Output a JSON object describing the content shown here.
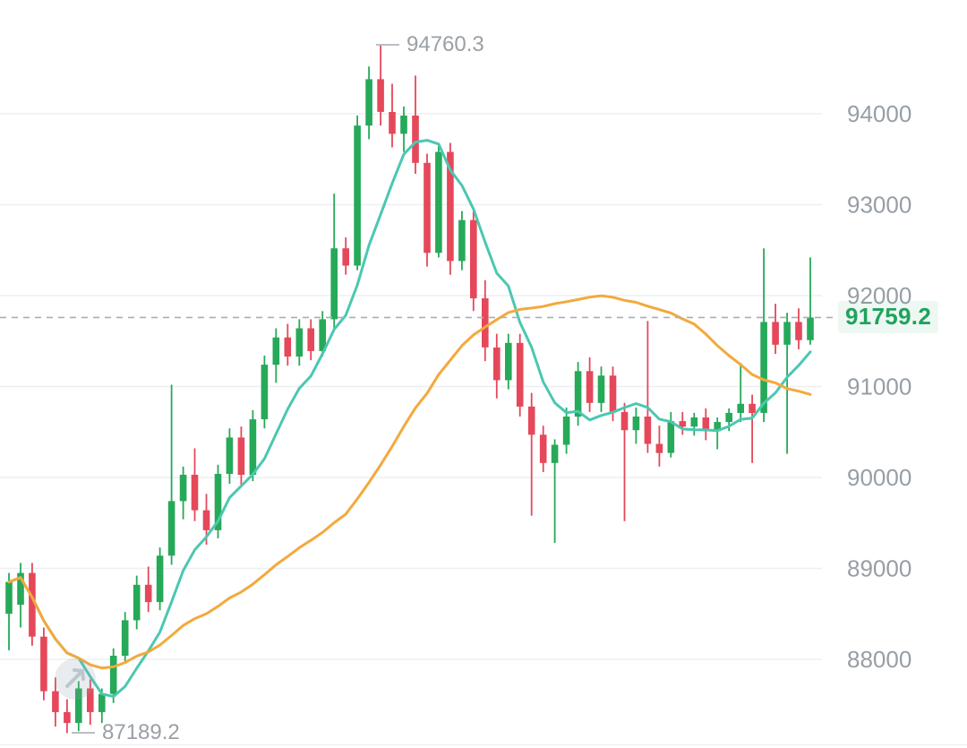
{
  "chart_data": {
    "type": "candlestick",
    "grid": true,
    "legend": "none",
    "ylim": [
      87025,
      95251
    ],
    "y_ticks": [
      {
        "value": 94000,
        "label": "94000"
      },
      {
        "value": 93000,
        "label": "93000"
      },
      {
        "value": 92000,
        "label": "92000"
      },
      {
        "value": 91000,
        "label": "91000"
      },
      {
        "value": 90000,
        "label": "90000"
      },
      {
        "value": 89000,
        "label": "89000"
      },
      {
        "value": 88000,
        "label": "88000"
      }
    ],
    "candles": [
      [
        88500,
        88950,
        88100,
        88850
      ],
      [
        88600,
        89060,
        88350,
        88950
      ],
      [
        88950,
        89060,
        88150,
        88250
      ],
      [
        88250,
        88350,
        87550,
        87650
      ],
      [
        87650,
        87800,
        87260,
        87420
      ],
      [
        87420,
        87560,
        87189.2,
        87300
      ],
      [
        87300,
        87760,
        87210,
        87680
      ],
      [
        87680,
        87780,
        87280,
        87420
      ],
      [
        87420,
        87680,
        87300,
        87620
      ],
      [
        87620,
        88120,
        87520,
        88040
      ],
      [
        88040,
        88520,
        87950,
        88430
      ],
      [
        88430,
        88920,
        88330,
        88820
      ],
      [
        88820,
        89020,
        88520,
        88630
      ],
      [
        88630,
        89230,
        88540,
        89140
      ],
      [
        89140,
        91020,
        89040,
        89740
      ],
      [
        89740,
        90120,
        89540,
        90030
      ],
      [
        90030,
        90320,
        89520,
        89640
      ],
      [
        89640,
        89820,
        89260,
        89420
      ],
      [
        89420,
        90140,
        89330,
        90040
      ],
      [
        90040,
        90540,
        89930,
        90440
      ],
      [
        90440,
        90560,
        89920,
        90030
      ],
      [
        90030,
        90740,
        89960,
        90640
      ],
      [
        90640,
        91340,
        90540,
        91240
      ],
      [
        91240,
        91640,
        91040,
        91540
      ],
      [
        91540,
        91690,
        91230,
        91330
      ],
      [
        91330,
        91740,
        91230,
        91640
      ],
      [
        91640,
        91740,
        91290,
        91390
      ],
      [
        91390,
        91830,
        91330,
        91740
      ],
      [
        91740,
        93120,
        91640,
        92520
      ],
      [
        92520,
        92640,
        92230,
        92330
      ],
      [
        92330,
        93980,
        92280,
        93870
      ],
      [
        93870,
        94520,
        93720,
        94380
      ],
      [
        94380,
        94760.3,
        93870,
        94020
      ],
      [
        94020,
        94330,
        93630,
        93780
      ],
      [
        93780,
        94080,
        93580,
        93980
      ],
      [
        93980,
        94420,
        93340,
        93460
      ],
      [
        93460,
        93560,
        92320,
        92470
      ],
      [
        92470,
        93680,
        92420,
        93580
      ],
      [
        93580,
        93680,
        92230,
        92380
      ],
      [
        92380,
        92930,
        92280,
        92830
      ],
      [
        92830,
        92930,
        91830,
        91970
      ],
      [
        91970,
        92170,
        91280,
        91430
      ],
      [
        91430,
        91580,
        90870,
        91070
      ],
      [
        91070,
        91580,
        90970,
        91480
      ],
      [
        91480,
        91580,
        90670,
        90780
      ],
      [
        90780,
        90930,
        89580,
        90470
      ],
      [
        90470,
        90570,
        90060,
        90160
      ],
      [
        90160,
        90420,
        89280,
        90360
      ],
      [
        90360,
        90770,
        90260,
        90670
      ],
      [
        90670,
        91270,
        90570,
        91170
      ],
      [
        91170,
        91320,
        90720,
        90820
      ],
      [
        90820,
        91220,
        90720,
        91120
      ],
      [
        91120,
        91220,
        90620,
        90720
      ],
      [
        90720,
        90820,
        89520,
        90520
      ],
      [
        90520,
        90770,
        90370,
        90670
      ],
      [
        90670,
        91720,
        90270,
        90370
      ],
      [
        90370,
        90570,
        90120,
        90270
      ],
      [
        90270,
        90720,
        90220,
        90620
      ],
      [
        90620,
        90720,
        90470,
        90560
      ],
      [
        90560,
        90710,
        90460,
        90660
      ],
      [
        90660,
        90760,
        90410,
        90510
      ],
      [
        90510,
        90660,
        90310,
        90610
      ],
      [
        90610,
        90760,
        90510,
        90710
      ],
      [
        90710,
        91260,
        90610,
        90810
      ],
      [
        90810,
        90910,
        90160,
        90710
      ],
      [
        90710,
        92520,
        90610,
        91710
      ],
      [
        91710,
        91910,
        91360,
        91460
      ],
      [
        91460,
        91810,
        90260,
        91710
      ],
      [
        91710,
        91860,
        91410,
        91510
      ],
      [
        91510,
        92420,
        91460,
        91759.2
      ]
    ],
    "overlays": [
      {
        "name": "ma-fast",
        "type": "sma",
        "period": 7,
        "color": "#4cc7b1"
      },
      {
        "name": "ma-slow",
        "type": "sma",
        "period": 30,
        "color": "#f3a93c"
      }
    ],
    "annotations": {
      "high": {
        "label": "94760.3",
        "value": 94760.3
      },
      "low": {
        "label": "87189.2",
        "value": 87189.2
      },
      "last_price": {
        "label": "91759.2",
        "value": 91759.2
      }
    },
    "colors": {
      "up": "#26a959",
      "down": "#e5485a",
      "ma_fast": "#4cc7b1",
      "ma_slow": "#f3a93c",
      "grid": "#edeff2",
      "axis_text": "#979ea5",
      "annotation_text": "#9aa0a6",
      "last_price": "#1fa35e",
      "dashed_line": "#a9aeb4"
    }
  }
}
